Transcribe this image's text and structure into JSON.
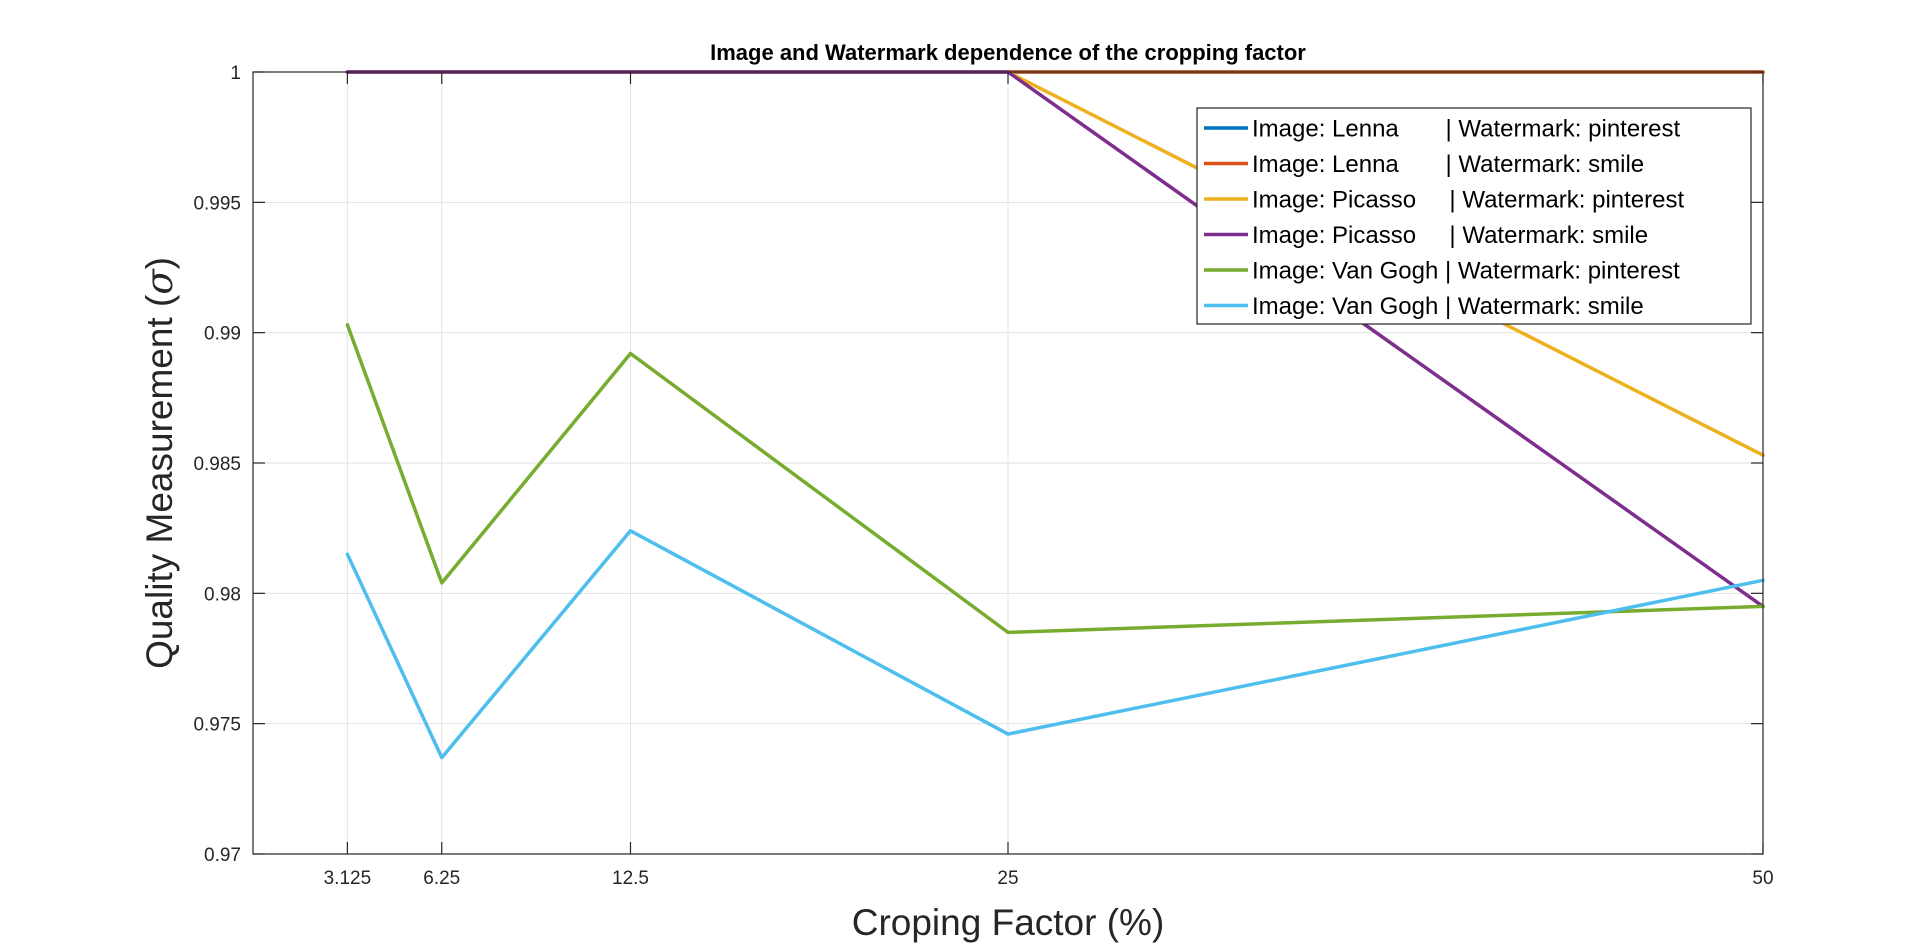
{
  "chart_data": {
    "type": "line",
    "title": "Image and Watermark dependence of the cropping factor",
    "xlabel": "Croping Factor (%)",
    "ylabel_main": "Quality Measurement (",
    "ylabel_symbol": "σ",
    "ylabel_close": ")",
    "x": [
      3.125,
      6.25,
      12.5,
      25,
      50
    ],
    "x_tick_labels": [
      "3.125",
      "6.25",
      "12.5",
      "25",
      "50"
    ],
    "xlim": [
      0,
      50
    ],
    "ylim": [
      0.97,
      1
    ],
    "y_ticks": [
      0.97,
      0.975,
      0.98,
      0.985,
      0.99,
      0.995,
      1
    ],
    "y_tick_labels": [
      "0.97",
      "0.975",
      "0.98",
      "0.985",
      "0.99",
      "0.995",
      "1"
    ],
    "grid": true,
    "legend_position": "top-right",
    "series": [
      {
        "name": "Image: Lenna       | Watermark: pinterest",
        "color": "#0072BD",
        "values": [
          1,
          1,
          1,
          1,
          1
        ]
      },
      {
        "name": "Image: Lenna       | Watermark: smile",
        "color": "#D95319",
        "values": [
          1,
          1,
          1,
          1,
          1
        ]
      },
      {
        "name": "Image: Picasso     | Watermark: pinterest",
        "color": "#EDB120",
        "values": [
          1,
          1,
          1,
          1,
          0.9853
        ]
      },
      {
        "name": "Image: Picasso     | Watermark: smile",
        "color": "#7E2F8E",
        "values": [
          1,
          1,
          1,
          1,
          0.9795
        ]
      },
      {
        "name": "Image: Van Gogh | Watermark: pinterest",
        "color": "#77AC30",
        "values": [
          0.9903,
          0.9804,
          0.9892,
          0.9785,
          0.9795
        ]
      },
      {
        "name": "Image: Van Gogh | Watermark: smile",
        "color": "#4DBEEE",
        "values": [
          0.9815,
          0.9737,
          0.9824,
          0.9746,
          0.9805
        ]
      }
    ]
  }
}
